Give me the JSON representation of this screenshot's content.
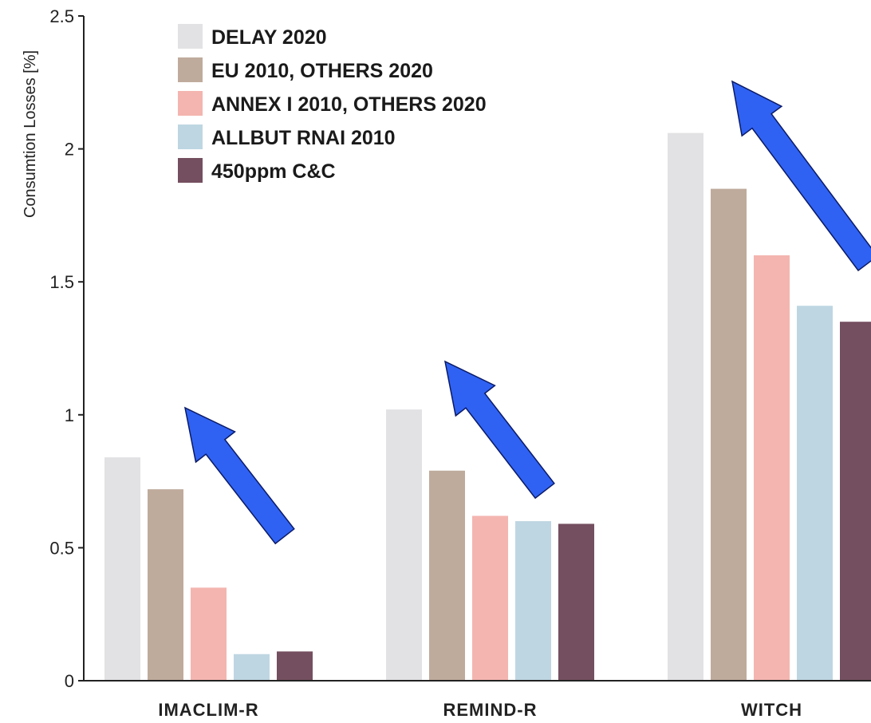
{
  "chart_data": {
    "type": "bar",
    "ylabel": "Consumtion Losses [%]",
    "xlabel": "",
    "ylim": [
      0,
      2.5
    ],
    "yticks": [
      {
        "value": 0,
        "label": "0"
      },
      {
        "value": 0.5,
        "label": "0.5"
      },
      {
        "value": 1,
        "label": "1"
      },
      {
        "value": 1.5,
        "label": "1.5"
      },
      {
        "value": 2,
        "label": "2"
      },
      {
        "value": 2.5,
        "label": "2.5"
      }
    ],
    "categories": [
      "IMACLIM-R",
      "REMIND-R",
      "WITCH"
    ],
    "series": [
      {
        "name": "DELAY 2020",
        "color": "#e2e2e4",
        "values": [
          0.84,
          1.02,
          2.06
        ]
      },
      {
        "name": "EU 2010, OTHERS 2020",
        "color": "#bfab9c",
        "values": [
          0.72,
          0.79,
          1.85
        ]
      },
      {
        "name": "ANNEX I 2010, OTHERS 2020",
        "color": "#f4b5b0",
        "values": [
          0.35,
          0.62,
          1.6
        ]
      },
      {
        "name": "ALLBUT RNAI 2010",
        "color": "#bed6e2",
        "values": [
          0.1,
          0.6,
          1.41
        ]
      },
      {
        "name": "450ppm C&C",
        "color": "#744f5f",
        "values": [
          0.11,
          0.59,
          1.35
        ]
      }
    ],
    "legend_position": "top-left",
    "grid": false,
    "annotations": [
      {
        "type": "arrow",
        "color": "#2f62f3",
        "direction": "up-left",
        "near_category": "IMACLIM-R"
      },
      {
        "type": "arrow",
        "color": "#2f62f3",
        "direction": "up-left",
        "near_category": "REMIND-R"
      },
      {
        "type": "arrow",
        "color": "#2f62f3",
        "direction": "up-left",
        "near_category": "WITCH"
      }
    ]
  }
}
